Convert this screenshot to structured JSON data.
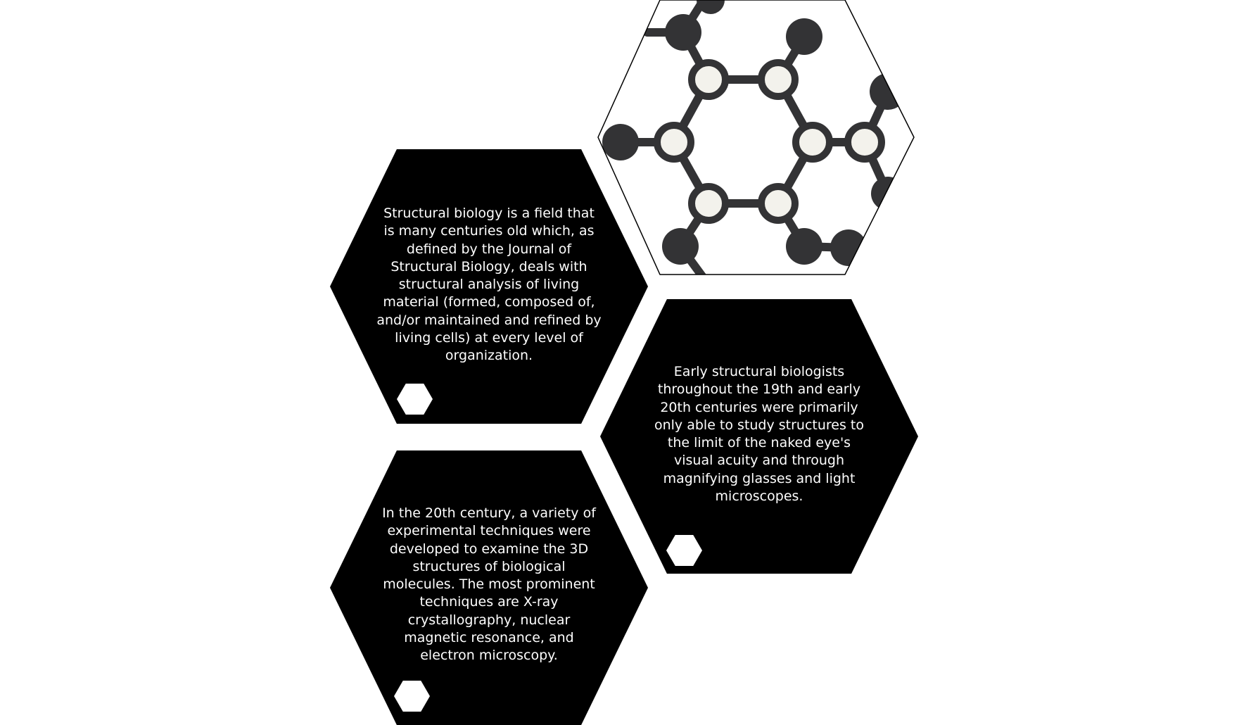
{
  "hexagons": [
    {
      "text": "Structural biology is a field that is many centuries old which, as defined by the Journal of Structural Biology, deals with structural analysis of living material (formed, composed of, and/or maintained and refined by living cells) at every level of organization."
    },
    {
      "text": "Early structural biologists throughout the 19th and early 20th centuries were primarily only able to study structures to the limit of the naked eye's visual acuity and through magnifying glasses and light microscopes."
    },
    {
      "text": "In the 20th century, a variety of experimental techniques were developed to examine the 3D structures of biological molecules. The most prominent techniques are X-ray crystallography, nuclear magnetic resonance, and electron microscopy."
    }
  ],
  "colors": {
    "hex_fill": "#000000",
    "hex_text": "#ffffff",
    "atom_dark": "#333335",
    "atom_light": "#f3f2ec",
    "bond": "#333335"
  },
  "image_icon": "molecule-hexagon-image"
}
